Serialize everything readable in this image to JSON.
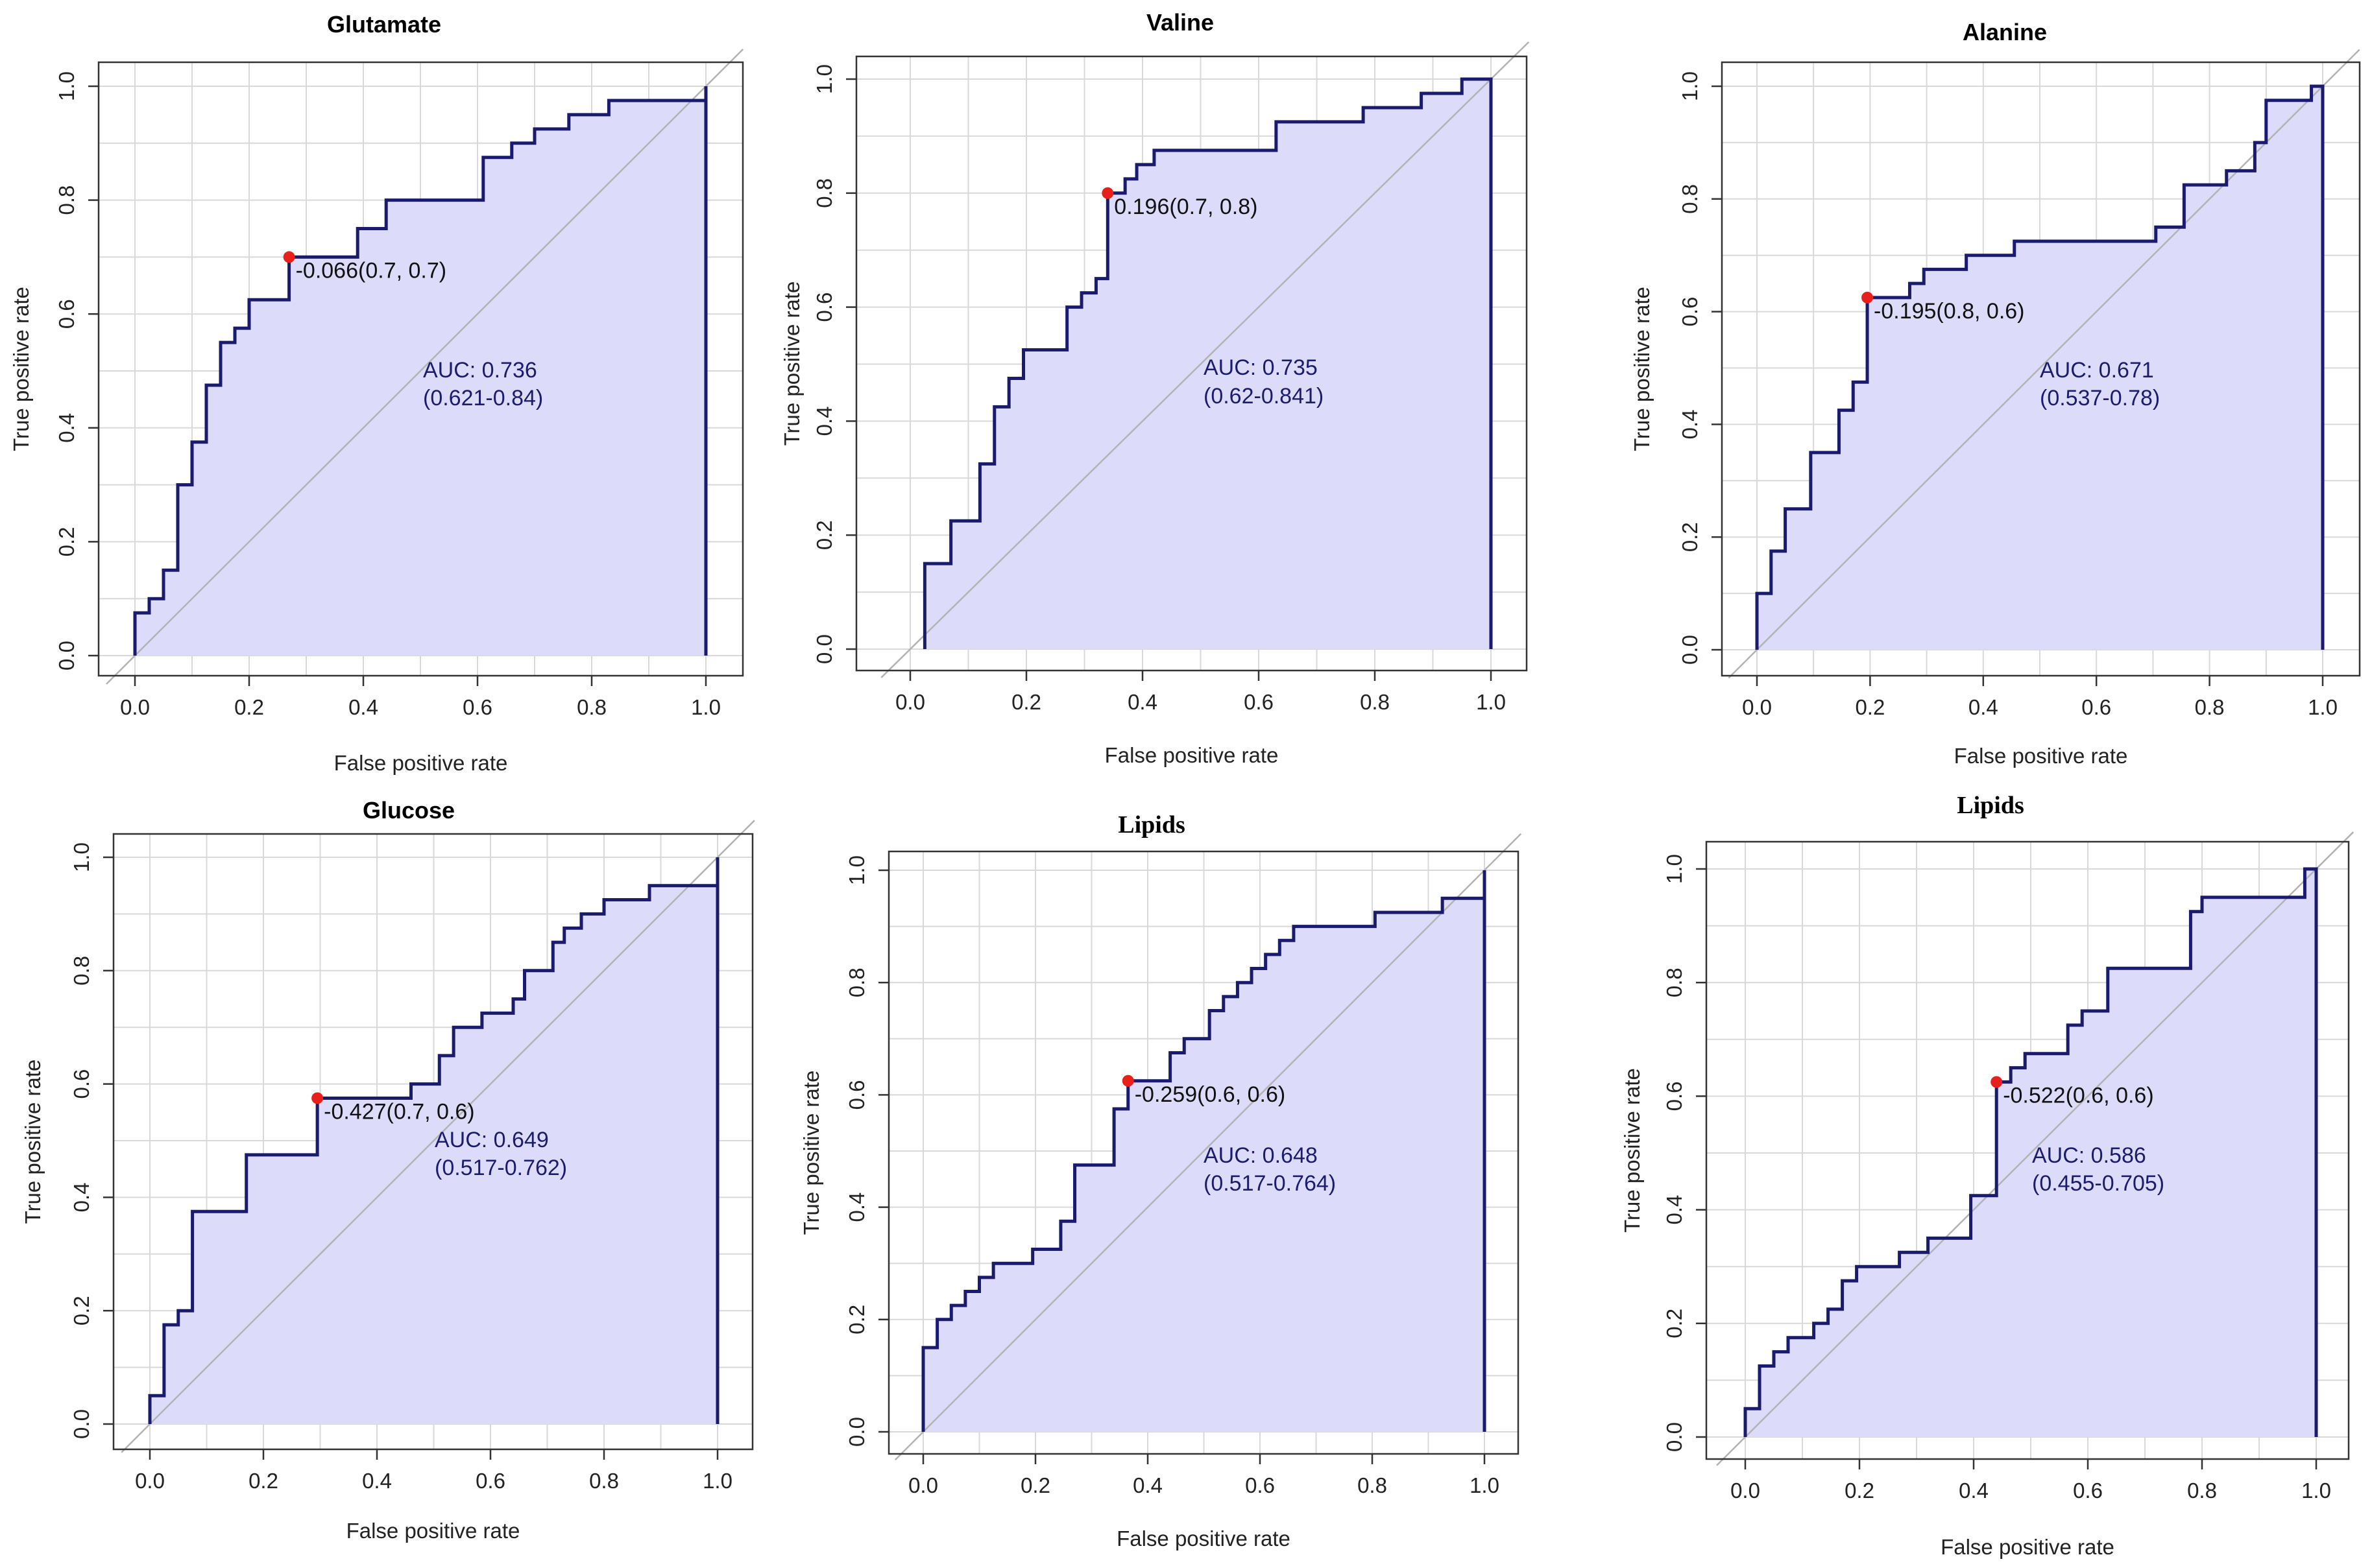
{
  "chart_data": [
    {
      "type": "line",
      "title": "Glutamate",
      "xlabel": "False positive rate",
      "ylabel": "True positive rate",
      "xlim": [
        0,
        1
      ],
      "ylim": [
        0,
        1
      ],
      "x_ticks": [
        "0.0",
        "0.2",
        "0.4",
        "0.6",
        "0.8",
        "1.0"
      ],
      "y_ticks": [
        "0.0",
        "0.2",
        "0.4",
        "0.6",
        "0.8",
        "1.0"
      ],
      "grid": true,
      "threshold_point": {
        "x": 0.27,
        "y": 0.7,
        "label": "-0.066(0.7, 0.7)"
      },
      "auc": "AUC: 0.736",
      "auc_ci": "(0.621-0.84)",
      "roc": {
        "fpr": [
          0,
          0,
          0.025,
          0.025,
          0.05,
          0.05,
          0.075,
          0.075,
          0.1,
          0.1,
          0.125,
          0.125,
          0.15,
          0.15,
          0.175,
          0.175,
          0.2,
          0.2,
          0.27,
          0.27,
          0.39,
          0.39,
          0.44,
          0.44,
          0.61,
          0.61,
          0.66,
          0.66,
          0.7,
          0.7,
          0.76,
          0.76,
          0.83,
          0.83,
          1.0,
          1.0
        ],
        "tpr": [
          0,
          0.075,
          0.075,
          0.1,
          0.1,
          0.15,
          0.15,
          0.3,
          0.3,
          0.375,
          0.375,
          0.475,
          0.475,
          0.55,
          0.55,
          0.575,
          0.575,
          0.625,
          0.625,
          0.7,
          0.7,
          0.75,
          0.75,
          0.8,
          0.8,
          0.875,
          0.875,
          0.9,
          0.9,
          0.925,
          0.925,
          0.95,
          0.95,
          0.975,
          0.975,
          1.0
        ]
      }
    },
    {
      "type": "line",
      "title": "Valine",
      "xlabel": "False positive rate",
      "ylabel": "True positive rate",
      "xlim": [
        0,
        1
      ],
      "ylim": [
        0,
        1
      ],
      "x_ticks": [
        "0.0",
        "0.2",
        "0.4",
        "0.6",
        "0.8",
        "1.0"
      ],
      "y_ticks": [
        "0.0",
        "0.2",
        "0.4",
        "0.6",
        "0.8",
        "1.0"
      ],
      "grid": true,
      "threshold_point": {
        "x": 0.34,
        "y": 0.8,
        "label": "0.196(0.7, 0.8)"
      },
      "auc": "AUC: 0.735",
      "auc_ci": "(0.62-0.841)",
      "roc": {
        "fpr": [
          0.025,
          0.025,
          0.07,
          0.07,
          0.12,
          0.12,
          0.145,
          0.145,
          0.17,
          0.17,
          0.195,
          0.195,
          0.27,
          0.27,
          0.295,
          0.295,
          0.32,
          0.32,
          0.34,
          0.34,
          0.37,
          0.37,
          0.39,
          0.39,
          0.42,
          0.42,
          0.46,
          0.46,
          0.63,
          0.63,
          0.78,
          0.78,
          0.88,
          0.88,
          0.95,
          0.95,
          1.0
        ],
        "tpr": [
          0,
          0.15,
          0.15,
          0.225,
          0.225,
          0.325,
          0.325,
          0.425,
          0.425,
          0.475,
          0.475,
          0.525,
          0.525,
          0.6,
          0.6,
          0.625,
          0.625,
          0.65,
          0.65,
          0.8,
          0.8,
          0.825,
          0.825,
          0.85,
          0.85,
          0.875,
          0.875,
          0.875,
          0.875,
          0.925,
          0.925,
          0.95,
          0.95,
          0.975,
          0.975,
          1.0,
          1.0
        ]
      }
    },
    {
      "type": "line",
      "title": "Alanine",
      "xlabel": "False positive rate",
      "ylabel": "True positive rate",
      "xlim": [
        0,
        1
      ],
      "ylim": [
        0,
        1
      ],
      "x_ticks": [
        "0.0",
        "0.2",
        "0.4",
        "0.6",
        "0.8",
        "1.0"
      ],
      "y_ticks": [
        "0.0",
        "0.2",
        "0.4",
        "0.6",
        "0.8",
        "1.0"
      ],
      "grid": true,
      "threshold_point": {
        "x": 0.195,
        "y": 0.625,
        "label": "-0.195(0.8, 0.6)"
      },
      "auc": "AUC: 0.671",
      "auc_ci": "(0.537-0.78)",
      "roc": {
        "fpr": [
          0,
          0,
          0.025,
          0.025,
          0.05,
          0.05,
          0.095,
          0.095,
          0.145,
          0.145,
          0.17,
          0.17,
          0.195,
          0.195,
          0.27,
          0.27,
          0.295,
          0.295,
          0.37,
          0.37,
          0.455,
          0.455,
          0.705,
          0.705,
          0.755,
          0.755,
          0.83,
          0.83,
          0.88,
          0.88,
          0.9,
          0.9,
          0.98,
          0.98,
          1.0
        ],
        "tpr": [
          0,
          0.1,
          0.1,
          0.175,
          0.175,
          0.25,
          0.25,
          0.35,
          0.35,
          0.425,
          0.425,
          0.475,
          0.475,
          0.625,
          0.625,
          0.65,
          0.65,
          0.675,
          0.675,
          0.7,
          0.7,
          0.725,
          0.725,
          0.75,
          0.75,
          0.825,
          0.825,
          0.85,
          0.85,
          0.9,
          0.9,
          0.975,
          0.975,
          1.0,
          1.0
        ]
      }
    },
    {
      "type": "line",
      "title": "Glucose",
      "xlabel": "False positive rate",
      "ylabel": "True positive rate",
      "xlim": [
        0,
        1
      ],
      "ylim": [
        0,
        1
      ],
      "x_ticks": [
        "0.0",
        "0.2",
        "0.4",
        "0.6",
        "0.8",
        "1.0"
      ],
      "y_ticks": [
        "0.0",
        "0.2",
        "0.4",
        "0.6",
        "0.8",
        "1.0"
      ],
      "grid": true,
      "threshold_point": {
        "x": 0.295,
        "y": 0.575,
        "label": "-0.427(0.7, 0.6)"
      },
      "auc": "AUC: 0.649",
      "auc_ci": "(0.517-0.762)",
      "roc": {
        "fpr": [
          0,
          0,
          0.025,
          0.025,
          0.05,
          0.05,
          0.075,
          0.075,
          0.17,
          0.17,
          0.295,
          0.295,
          0.46,
          0.46,
          0.51,
          0.51,
          0.535,
          0.535,
          0.585,
          0.585,
          0.64,
          0.64,
          0.66,
          0.66,
          0.71,
          0.71,
          0.73,
          0.73,
          0.76,
          0.76,
          0.8,
          0.8,
          0.88,
          0.88,
          1.0,
          1.0
        ],
        "tpr": [
          0,
          0.05,
          0.05,
          0.175,
          0.175,
          0.2,
          0.2,
          0.375,
          0.375,
          0.475,
          0.475,
          0.575,
          0.575,
          0.6,
          0.6,
          0.65,
          0.65,
          0.7,
          0.7,
          0.725,
          0.725,
          0.75,
          0.75,
          0.8,
          0.8,
          0.85,
          0.85,
          0.875,
          0.875,
          0.9,
          0.9,
          0.925,
          0.925,
          0.95,
          0.95,
          1.0
        ]
      }
    },
    {
      "type": "line",
      "title": "Lipids",
      "xlabel": "False positive rate",
      "ylabel": "True positive rate",
      "xlim": [
        0,
        1
      ],
      "ylim": [
        0,
        1
      ],
      "x_ticks": [
        "0.0",
        "0.2",
        "0.4",
        "0.6",
        "0.8",
        "1.0"
      ],
      "y_ticks": [
        "0.0",
        "0.2",
        "0.4",
        "0.6",
        "0.8",
        "1.0"
      ],
      "grid": true,
      "threshold_point": {
        "x": 0.365,
        "y": 0.625,
        "label": "-0.259(0.6, 0.6)"
      },
      "auc": "AUC: 0.648",
      "auc_ci": "(0.517-0.764)",
      "roc": {
        "fpr": [
          0,
          0,
          0.025,
          0.025,
          0.05,
          0.05,
          0.075,
          0.075,
          0.1,
          0.1,
          0.125,
          0.125,
          0.195,
          0.195,
          0.245,
          0.245,
          0.27,
          0.27,
          0.34,
          0.34,
          0.365,
          0.365,
          0.44,
          0.44,
          0.465,
          0.465,
          0.51,
          0.51,
          0.535,
          0.535,
          0.56,
          0.56,
          0.585,
          0.585,
          0.61,
          0.61,
          0.635,
          0.635,
          0.66,
          0.66,
          0.805,
          0.805,
          0.925,
          0.925,
          1.0,
          1.0
        ],
        "tpr": [
          0,
          0.15,
          0.15,
          0.2,
          0.2,
          0.225,
          0.225,
          0.25,
          0.25,
          0.275,
          0.275,
          0.3,
          0.3,
          0.325,
          0.325,
          0.375,
          0.375,
          0.475,
          0.475,
          0.575,
          0.575,
          0.625,
          0.625,
          0.675,
          0.675,
          0.7,
          0.7,
          0.75,
          0.75,
          0.775,
          0.775,
          0.8,
          0.8,
          0.825,
          0.825,
          0.85,
          0.85,
          0.875,
          0.875,
          0.9,
          0.9,
          0.925,
          0.925,
          0.95,
          0.95,
          1.0
        ]
      }
    },
    {
      "type": "line",
      "title": "Lipids",
      "xlabel": "False positive rate",
      "ylabel": "True positive rate",
      "xlim": [
        0,
        1
      ],
      "ylim": [
        0,
        1
      ],
      "x_ticks": [
        "0.0",
        "0.2",
        "0.4",
        "0.6",
        "0.8",
        "1.0"
      ],
      "y_ticks": [
        "0.0",
        "0.2",
        "0.4",
        "0.6",
        "0.8",
        "1.0"
      ],
      "grid": true,
      "threshold_point": {
        "x": 0.44,
        "y": 0.625,
        "label": "-0.522(0.6, 0.6)"
      },
      "auc": "AUC: 0.586",
      "auc_ci": "(0.455-0.705)",
      "roc": {
        "fpr": [
          0,
          0,
          0.025,
          0.025,
          0.05,
          0.05,
          0.075,
          0.075,
          0.12,
          0.12,
          0.145,
          0.145,
          0.17,
          0.17,
          0.195,
          0.195,
          0.27,
          0.27,
          0.32,
          0.32,
          0.395,
          0.395,
          0.44,
          0.44,
          0.465,
          0.465,
          0.49,
          0.49,
          0.565,
          0.565,
          0.59,
          0.59,
          0.635,
          0.635,
          0.78,
          0.78,
          0.8,
          0.8,
          0.98,
          0.98,
          1.0
        ],
        "tpr": [
          0,
          0.05,
          0.05,
          0.125,
          0.125,
          0.15,
          0.15,
          0.175,
          0.175,
          0.2,
          0.2,
          0.225,
          0.225,
          0.275,
          0.275,
          0.3,
          0.3,
          0.325,
          0.325,
          0.35,
          0.35,
          0.425,
          0.425,
          0.625,
          0.625,
          0.65,
          0.65,
          0.675,
          0.675,
          0.725,
          0.725,
          0.75,
          0.75,
          0.825,
          0.825,
          0.925,
          0.925,
          0.95,
          0.95,
          1.0,
          1.0
        ]
      }
    }
  ]
}
